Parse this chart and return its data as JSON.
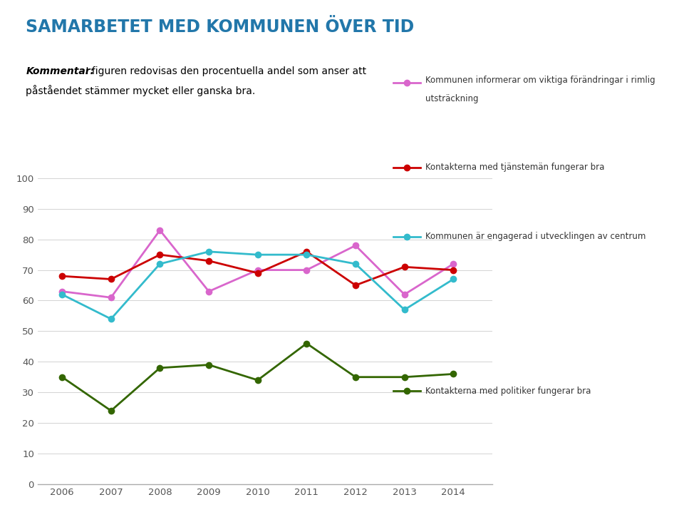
{
  "title": "SAMARBETET MED KOMMUNEN ÖVER TID",
  "subtitle_bold": "Kommentar:",
  "subtitle_rest": " I figuren redovisas den procentuella andel som anser att\npåståendet stämmer mycket eller ganska bra.",
  "years": [
    2006,
    2007,
    2008,
    2009,
    2010,
    2011,
    2012,
    2013,
    2014
  ],
  "series": [
    {
      "label_line1": "Kommunen informerar om viktiga förändringar i rimlig",
      "label_line2": "utsträckning",
      "color": "#d966cc",
      "values": [
        63,
        61,
        83,
        63,
        70,
        70,
        78,
        62,
        72
      ]
    },
    {
      "label_line1": "Kontakterna med tjänstemän fungerar bra",
      "label_line2": "",
      "color": "#cc0000",
      "values": [
        68,
        67,
        75,
        73,
        69,
        76,
        65,
        71,
        70
      ]
    },
    {
      "label_line1": "Kommunen är engagerad i utvecklingen av centrum",
      "label_line2": "",
      "color": "#33bbcc",
      "values": [
        62,
        54,
        72,
        76,
        75,
        75,
        72,
        57,
        67
      ]
    },
    {
      "label_line1": "Kontakterna med politiker fungerar bra",
      "label_line2": "",
      "color": "#336600",
      "values": [
        35,
        24,
        38,
        39,
        34,
        46,
        35,
        35,
        36
      ]
    }
  ],
  "ylim": [
    0,
    100
  ],
  "yticks": [
    0,
    10,
    20,
    30,
    40,
    50,
    60,
    70,
    80,
    90,
    100
  ],
  "background_color": "#ffffff",
  "right_panel_color": "#c5d5e4",
  "title_color": "#2277aa",
  "subtitle_color": "#000000",
  "axis_color": "#aaaaaa",
  "grid_color": "#cccccc",
  "tick_color": "#555555"
}
